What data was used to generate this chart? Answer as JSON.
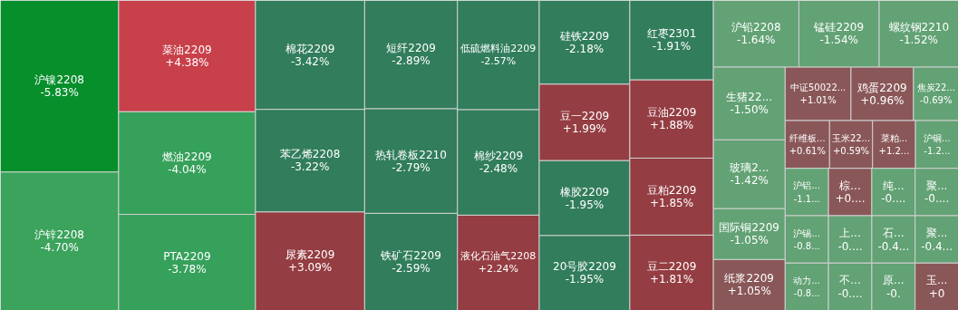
{
  "chart_data": {
    "type": "other",
    "categories": [
      "沪镍2208",
      "沪锌2208",
      "菜油2209",
      "燃油2209",
      "PTA2209",
      "棉花2209",
      "苯乙烯2208",
      "尿素2209",
      "短纤2209",
      "热轧卷板2210",
      "铁矿石2209",
      "低硫燃料油2209",
      "棉纱2209",
      "液化石油气2208",
      "硅铁2209",
      "豆一2209",
      "橡胶2209",
      "20号胶2209",
      "红枣2301",
      "豆油2209",
      "豆粕2209",
      "豆二2209",
      "沪铅2208",
      "锰硅2209",
      "螺纹钢2210",
      "生猪22...",
      "玻璃2...",
      "国际铜2209",
      "纸浆2209",
      "中证50022...",
      "鸡蛋2209",
      "焦炭22...",
      "纤维板...",
      "玉米22...",
      "菜粕...",
      "沪铜...",
      "沪铝...",
      "沪锡...",
      "动力...",
      "棕...",
      "纯...",
      "聚...",
      "上...",
      "不...",
      "石...",
      "聚...",
      "原...",
      "玉..."
    ],
    "values": [
      -5.83,
      -4.7,
      4.38,
      -4.04,
      -3.78,
      -3.42,
      -3.22,
      3.09,
      -2.89,
      -2.79,
      -2.59,
      -2.57,
      -2.48,
      2.24,
      -2.18,
      1.99,
      -1.95,
      -1.95,
      -1.91,
      1.88,
      1.85,
      1.81,
      -1.64,
      -1.54,
      -1.52,
      -1.5,
      -1.42,
      -1.05,
      1.05,
      1.01,
      0.96,
      -0.69,
      0.61,
      0.59,
      null,
      null,
      null,
      null,
      null,
      null,
      null,
      null,
      null,
      null,
      null,
      null,
      null,
      null
    ],
    "value_labels": [
      "-5.83%",
      "-4.70%",
      "+4.38%",
      "-4.04%",
      "-3.78%",
      "-3.42%",
      "-3.22%",
      "+3.09%",
      "-2.89%",
      "-2.79%",
      "-2.59%",
      "-2.57%",
      "-2.48%",
      "+2.24%",
      "-2.18%",
      "+1.99%",
      "-1.95%",
      "-1.95%",
      "-1.91%",
      "+1.88%",
      "+1.85%",
      "+1.81%",
      "-1.64%",
      "-1.54%",
      "-1.52%",
      "-1.50%",
      "-1.42%",
      "-1.05%",
      "+1.05%",
      "+1.01%",
      "+0.96%",
      "-0.69%",
      "+0.61%",
      "+0.59%",
      "+1.2...",
      "-1.2...",
      "-1.1...",
      "-0.8...",
      "-0.8...",
      "+0....",
      "-0....",
      "-0....",
      "-0....",
      "-0....",
      "-0.4...",
      "-0.4...",
      "-0.",
      "+0"
    ],
    "colors": [
      "#078f2c",
      "#3ba35c",
      "#c8404a",
      "#36a15a",
      "#36a15a",
      "#317d5c",
      "#317d5c",
      "#943d42",
      "#317d5c",
      "#317d5c",
      "#317d5c",
      "#317d5c",
      "#317d5c",
      "#943d42",
      "#317d5c",
      "#943d42",
      "#317d5c",
      "#317d5c",
      "#317d5c",
      "#943d42",
      "#943d42",
      "#943d42",
      "#62a274",
      "#62a274",
      "#62a274",
      "#62a274",
      "#62a274",
      "#62a274",
      "#8a5758",
      "#8a5758",
      "#8a5758",
      "#62a274",
      "#8a5758",
      "#8a5758",
      "#8a5758",
      "#62a274",
      "#62a274",
      "#62a274",
      "#62a274",
      "#8a5758",
      "#62a274",
      "#62a274",
      "#62a274",
      "#62a274",
      "#62a274",
      "#62a274",
      "#62a274",
      "#8a5758"
    ]
  }
}
